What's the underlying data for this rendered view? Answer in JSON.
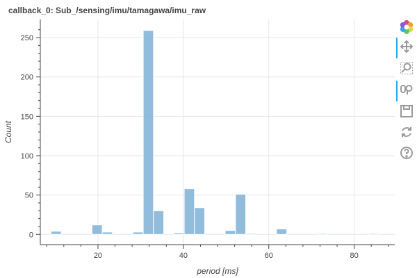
{
  "chart_data": {
    "type": "bar",
    "title": "callback_0: Sub_/sensing/imu/tamagawa/imu_raw",
    "xlabel": "period [ms]",
    "ylabel": "Count",
    "xlim": [
      6.5,
      89.5
    ],
    "ylim": [
      -13,
      273
    ],
    "xticks": [
      20,
      40,
      60,
      80
    ],
    "yticks": [
      0,
      50,
      100,
      150,
      200,
      250
    ],
    "bin_width": 2.4,
    "bins": [
      {
        "x0": 9.0,
        "x1": 11.4,
        "count": 4
      },
      {
        "x0": 11.4,
        "x1": 13.8,
        "count": 0
      },
      {
        "x0": 13.8,
        "x1": 16.2,
        "count": 0
      },
      {
        "x0": 16.2,
        "x1": 18.6,
        "count": 0
      },
      {
        "x0": 18.6,
        "x1": 21.0,
        "count": 12
      },
      {
        "x0": 21.0,
        "x1": 23.4,
        "count": 3
      },
      {
        "x0": 23.4,
        "x1": 25.8,
        "count": 0
      },
      {
        "x0": 25.8,
        "x1": 28.2,
        "count": 0
      },
      {
        "x0": 28.2,
        "x1": 30.6,
        "count": 3
      },
      {
        "x0": 30.6,
        "x1": 33.0,
        "count": 259
      },
      {
        "x0": 33.0,
        "x1": 35.4,
        "count": 30
      },
      {
        "x0": 35.4,
        "x1": 37.8,
        "count": 0
      },
      {
        "x0": 37.8,
        "x1": 40.2,
        "count": 2
      },
      {
        "x0": 40.2,
        "x1": 42.6,
        "count": 58
      },
      {
        "x0": 42.6,
        "x1": 45.0,
        "count": 34
      },
      {
        "x0": 45.0,
        "x1": 47.4,
        "count": 0
      },
      {
        "x0": 47.4,
        "x1": 49.8,
        "count": 0
      },
      {
        "x0": 49.8,
        "x1": 52.2,
        "count": 5
      },
      {
        "x0": 52.2,
        "x1": 54.6,
        "count": 51
      },
      {
        "x0": 54.6,
        "x1": 57.0,
        "count": 1
      },
      {
        "x0": 57.0,
        "x1": 59.4,
        "count": 0
      },
      {
        "x0": 59.4,
        "x1": 61.8,
        "count": 0
      },
      {
        "x0": 61.8,
        "x1": 64.2,
        "count": 7
      },
      {
        "x0": 64.2,
        "x1": 66.6,
        "count": 0
      },
      {
        "x0": 66.6,
        "x1": 69.0,
        "count": 0
      },
      {
        "x0": 69.0,
        "x1": 71.4,
        "count": 0
      },
      {
        "x0": 71.4,
        "x1": 73.8,
        "count": 1
      },
      {
        "x0": 73.8,
        "x1": 76.2,
        "count": 0
      },
      {
        "x0": 76.2,
        "x1": 78.6,
        "count": 0
      },
      {
        "x0": 78.6,
        "x1": 81.0,
        "count": 0
      },
      {
        "x0": 81.0,
        "x1": 83.4,
        "count": 0
      },
      {
        "x0": 83.4,
        "x1": 85.8,
        "count": 1
      },
      {
        "x0": 85.8,
        "x1": 88.2,
        "count": 0
      }
    ],
    "bar_color": "#7fb0d6",
    "bar_edge_color": "#ffffff",
    "grid": true,
    "grid_color": "#e6e6e6",
    "legend": false
  },
  "toolbar": {
    "tools": [
      {
        "name": "bokeh-logo-icon",
        "active": false
      },
      {
        "name": "pan-tool-icon",
        "active": true
      },
      {
        "name": "box-zoom-tool-icon",
        "active": false
      },
      {
        "name": "wheel-zoom-tool-icon",
        "active": true
      },
      {
        "name": "save-tool-icon",
        "active": false
      },
      {
        "name": "reset-tool-icon",
        "active": false
      },
      {
        "name": "help-tool-icon",
        "active": false
      }
    ]
  }
}
